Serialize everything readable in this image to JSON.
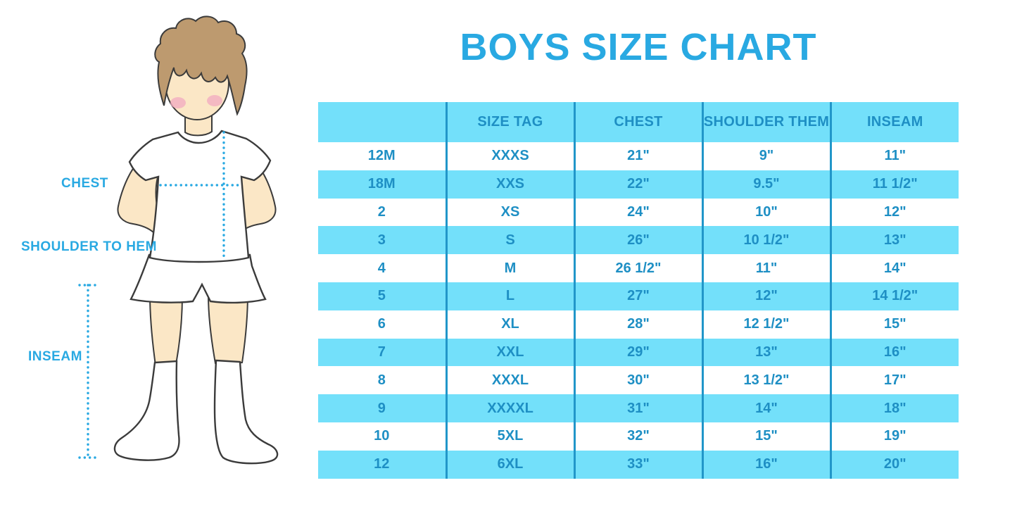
{
  "title": "BOYS SIZE CHART",
  "colors": {
    "accent_blue": "#29A9E2",
    "table_text_blue": "#1E8FC4",
    "row_cyan": "#73E0FA",
    "grid_blue": "#2196C9",
    "skin": "#FBE7C6",
    "hair_brown": "#BD9A6F",
    "blush_pink": "#F2AEC0",
    "outline": "#3B3B3B",
    "garment_white": "#FFFFFF"
  },
  "figure": {
    "labels": {
      "chest": "CHEST",
      "shoulder_to_hem": "SHOULDER TO HEM",
      "inseam": "INSEAM"
    }
  },
  "chart_data": {
    "type": "table",
    "title": "BOYS SIZE CHART",
    "columns": [
      "",
      "SIZE TAG",
      "CHEST",
      "SHOULDER THEM",
      "INSEAM"
    ],
    "rows": [
      [
        "12M",
        "XXXS",
        "21\"",
        "9\"",
        "11\""
      ],
      [
        "18M",
        "XXS",
        "22\"",
        "9.5\"",
        "11 1/2\""
      ],
      [
        "2",
        "XS",
        "24\"",
        "10\"",
        "12\""
      ],
      [
        "3",
        "S",
        "26\"",
        "10 1/2\"",
        "13\""
      ],
      [
        "4",
        "M",
        "26 1/2\"",
        "11\"",
        "14\""
      ],
      [
        "5",
        "L",
        "27\"",
        "12\"",
        "14 1/2\""
      ],
      [
        "6",
        "XL",
        "28\"",
        "12 1/2\"",
        "15\""
      ],
      [
        "7",
        "XXL",
        "29\"",
        "13\"",
        "16\""
      ],
      [
        "8",
        "XXXL",
        "30\"",
        "13 1/2\"",
        "17\""
      ],
      [
        "9",
        "XXXXL",
        "31\"",
        "14\"",
        "18\""
      ],
      [
        "10",
        "5XL",
        "32\"",
        "15\"",
        "19\""
      ],
      [
        "12",
        "6XL",
        "33\"",
        "16\"",
        "20\""
      ]
    ],
    "layout": {
      "row_striping": "white / cyan alternating",
      "grid": "vertical column separators only"
    }
  }
}
